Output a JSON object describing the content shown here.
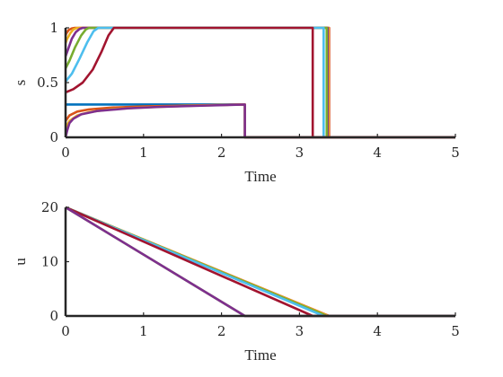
{
  "chart_data": [
    {
      "type": "line",
      "xlabel": "Time",
      "ylabel": "s",
      "xlim": [
        0,
        5
      ],
      "ylim": [
        0,
        1
      ],
      "xticks": [
        0,
        1,
        2,
        3,
        4,
        5
      ],
      "yticks": [
        0,
        0.5,
        1
      ],
      "yticklabels": [
        "0",
        "0.5",
        "1"
      ],
      "grid": false,
      "legend": "none",
      "series": [
        {
          "color": "#0072BD",
          "x": [
            0,
            2.3,
            2.3,
            5
          ],
          "y": [
            0.3,
            0.3,
            0,
            0
          ]
        },
        {
          "color": "#D95319",
          "x": [
            0,
            0.01,
            0.04,
            0.08,
            0.12,
            0.15,
            3.38,
            3.38,
            5
          ],
          "y": [
            0.93,
            0.95,
            0.98,
            0.995,
            1,
            1,
            1,
            0,
            0
          ]
        },
        {
          "color": "#EDB120",
          "x": [
            0,
            0.02,
            0.06,
            0.1,
            0.14,
            0.18,
            3.37,
            3.37,
            5
          ],
          "y": [
            0.86,
            0.9,
            0.95,
            0.985,
            0.997,
            1,
            1,
            0,
            0
          ]
        },
        {
          "color": "#7E2F8E",
          "x": [
            0,
            0.03,
            0.08,
            0.13,
            0.18,
            0.22,
            3.36,
            3.36,
            5
          ],
          "y": [
            0.74,
            0.8,
            0.9,
            0.96,
            0.99,
            1,
            1,
            0,
            0
          ]
        },
        {
          "color": "#77AC30",
          "x": [
            0,
            0.05,
            0.12,
            0.2,
            0.26,
            0.3,
            3.35,
            3.35,
            5
          ],
          "y": [
            0.63,
            0.7,
            0.82,
            0.93,
            0.985,
            1,
            1,
            0,
            0
          ]
        },
        {
          "color": "#4DBEEE",
          "x": [
            0,
            0.08,
            0.18,
            0.28,
            0.36,
            0.42,
            3.31,
            3.31,
            5
          ],
          "y": [
            0.51,
            0.58,
            0.72,
            0.87,
            0.97,
            1,
            1,
            0,
            0
          ]
        },
        {
          "color": "#A2142F",
          "x": [
            0,
            0.1,
            0.22,
            0.35,
            0.46,
            0.55,
            0.62,
            3.17,
            3.17,
            5
          ],
          "y": [
            0.41,
            0.44,
            0.5,
            0.62,
            0.78,
            0.93,
            1,
            1,
            0,
            0
          ]
        },
        {
          "color": "#D95319",
          "x": [
            0,
            0.05,
            0.15,
            0.3,
            0.6,
            1.0,
            1.6,
            2.3,
            2.3,
            5
          ],
          "y": [
            0.15,
            0.2,
            0.235,
            0.255,
            0.272,
            0.282,
            0.291,
            0.3,
            0,
            0
          ]
        },
        {
          "color": "#EDB120",
          "x": [
            0,
            0.05,
            0.15,
            0.3,
            0.6,
            1.0,
            1.6,
            2.3,
            2.3,
            5
          ],
          "y": [
            0.09,
            0.15,
            0.2,
            0.23,
            0.258,
            0.274,
            0.288,
            0.3,
            0,
            0
          ]
        },
        {
          "color": "#7E2F8E",
          "x": [
            0,
            0.02,
            0.05,
            0.1,
            0.2,
            0.4,
            0.8,
            1.2,
            1.8,
            2.3,
            2.3,
            5
          ],
          "y": [
            0.0,
            0.06,
            0.13,
            0.17,
            0.21,
            0.24,
            0.265,
            0.278,
            0.29,
            0.3,
            0,
            0
          ]
        }
      ]
    },
    {
      "type": "line",
      "xlabel": "Time",
      "ylabel": "u",
      "xlim": [
        0,
        5
      ],
      "ylim": [
        0,
        20
      ],
      "xticks": [
        0,
        1,
        2,
        3,
        4,
        5
      ],
      "yticks": [
        0,
        10,
        20
      ],
      "yticklabels": [
        "0",
        "10",
        "20"
      ],
      "grid": false,
      "legend": "none",
      "series": [
        {
          "color": "#D95319",
          "x": [
            0,
            3.38,
            5
          ],
          "y": [
            20,
            0,
            0
          ]
        },
        {
          "color": "#EDB120",
          "x": [
            0,
            3.37,
            5
          ],
          "y": [
            20,
            0,
            0
          ]
        },
        {
          "color": "#77AC30",
          "x": [
            0,
            3.35,
            5
          ],
          "y": [
            20,
            0,
            0
          ]
        },
        {
          "color": "#4DBEEE",
          "x": [
            0,
            3.31,
            5
          ],
          "y": [
            20,
            0,
            0
          ]
        },
        {
          "color": "#A2142F",
          "x": [
            0,
            3.17,
            5
          ],
          "y": [
            20,
            0,
            0
          ]
        },
        {
          "color": "#77AC30",
          "x": [
            0,
            2.3,
            5
          ],
          "y": [
            20,
            0,
            0
          ]
        },
        {
          "color": "#7E2F8E",
          "x": [
            0,
            2.3,
            5
          ],
          "y": [
            20,
            0,
            0
          ]
        }
      ]
    }
  ]
}
